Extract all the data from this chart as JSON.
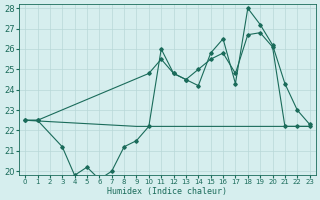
{
  "xlabel": "Humidex (Indice chaleur)",
  "xlim": [
    -0.5,
    23.5
  ],
  "ylim": [
    19.8,
    28.2
  ],
  "yticks": [
    20,
    21,
    22,
    23,
    24,
    25,
    26,
    27,
    28
  ],
  "xticks": [
    0,
    1,
    2,
    3,
    4,
    5,
    6,
    7,
    8,
    9,
    10,
    11,
    12,
    13,
    14,
    15,
    16,
    17,
    18,
    19,
    20,
    21,
    22,
    23
  ],
  "bg_color": "#d6eeee",
  "line_color": "#1a6b5a",
  "grid_color": "#b8d8d8",
  "line1_x": [
    0,
    1,
    3,
    4,
    5,
    6,
    7,
    8,
    9,
    10,
    11,
    12,
    13,
    14,
    15,
    16,
    17,
    18,
    19,
    20,
    21,
    22,
    23
  ],
  "line1_y": [
    22.5,
    22.5,
    21.2,
    19.8,
    20.2,
    19.6,
    20.0,
    21.2,
    21.5,
    22.2,
    26.0,
    24.8,
    24.5,
    24.2,
    25.8,
    26.5,
    24.3,
    28.0,
    27.2,
    26.2,
    24.3,
    23.0,
    22.3
  ],
  "line2_x": [
    0,
    1,
    10,
    11,
    12,
    13,
    14,
    15,
    16,
    17,
    18,
    19,
    20,
    21,
    22,
    23
  ],
  "line2_y": [
    22.5,
    22.5,
    24.8,
    25.5,
    24.8,
    24.5,
    25.0,
    25.5,
    25.8,
    24.8,
    26.7,
    26.8,
    26.1,
    22.2,
    22.2,
    22.2
  ],
  "line3_x": [
    0,
    9,
    14,
    19,
    23
  ],
  "line3_y": [
    22.5,
    22.2,
    22.2,
    22.2,
    22.2
  ]
}
